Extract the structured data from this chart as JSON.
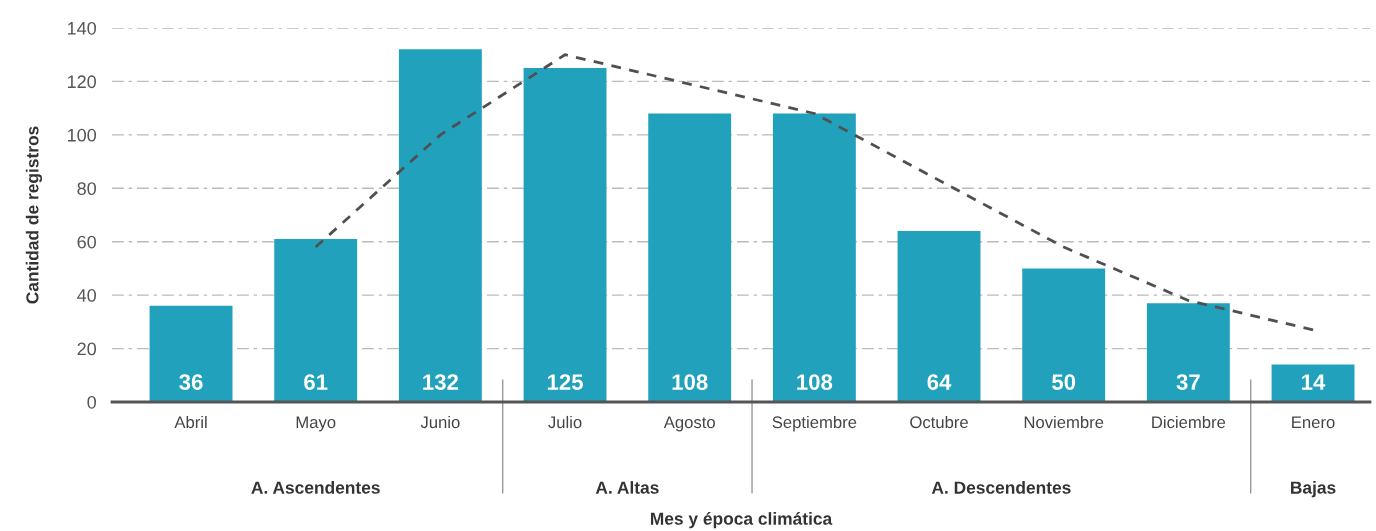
{
  "chart_data": {
    "type": "bar",
    "xlabel": "Mes y época climática",
    "ylabel": "Cantidad de registros",
    "categories": [
      "Abril",
      "Mayo",
      "Junio",
      "Julio",
      "Agosto",
      "Septiembre",
      "Octubre",
      "Noviembre",
      "Diciembre",
      "Enero"
    ],
    "series": [
      {
        "color": "#21a1bc",
        "values": [
          36,
          61,
          132,
          125,
          108,
          108,
          64,
          50,
          37,
          14
        ],
        "value_labels": [
          "36",
          "61",
          "132",
          "125",
          "108",
          "108",
          "64",
          "50",
          "37",
          "14"
        ]
      },
      {
        "type": "line",
        "color": "#505050",
        "line_style": "dashed",
        "x": [
          "Mayo",
          "Junio",
          "Julio",
          "Septiembre",
          "Noviembre",
          "Diciembre",
          "Enero"
        ],
        "values": [
          58,
          100,
          130,
          108,
          58,
          38,
          27
        ]
      }
    ],
    "ylim": [
      0,
      140
    ],
    "yticks": [
      0,
      20,
      40,
      60,
      80,
      100,
      120,
      140
    ],
    "grid": "y",
    "annotations": [
      "A. Ascendentes",
      "A. Altas",
      "A. Descendentes",
      "Bajas"
    ]
  }
}
